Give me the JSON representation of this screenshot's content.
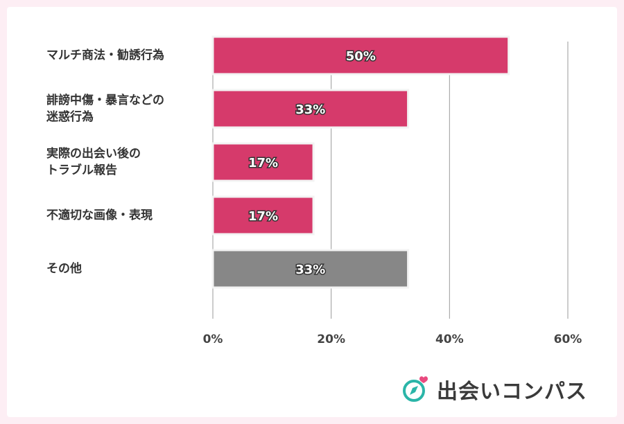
{
  "chart_data": {
    "type": "bar",
    "orientation": "horizontal",
    "categories": [
      "マルチ商法・勧誘行為",
      "誹謗中傷・暴言などの\n迷惑行為",
      "実際の出会い後の\nトラブル報告",
      "不適切な画像・表現",
      "その他"
    ],
    "values": [
      50,
      33,
      17,
      17,
      33
    ],
    "value_labels": [
      "50%",
      "33%",
      "17%",
      "17%",
      "33%"
    ],
    "bar_colors": [
      "#d63a6b",
      "#d63a6b",
      "#d63a6b",
      "#d63a6b",
      "#878787"
    ],
    "xlim": [
      0,
      60
    ],
    "x_ticks": [
      0,
      20,
      40,
      60
    ],
    "x_tick_labels": [
      "0%",
      "20%",
      "40%",
      "60%"
    ],
    "grid": true,
    "title": "",
    "xlabel": "",
    "ylabel": ""
  },
  "logo": {
    "text": "出会いコンパス",
    "icon": "compass-heart-icon",
    "icon_color": "#2bb5a8",
    "heart_color": "#e94a7f"
  }
}
